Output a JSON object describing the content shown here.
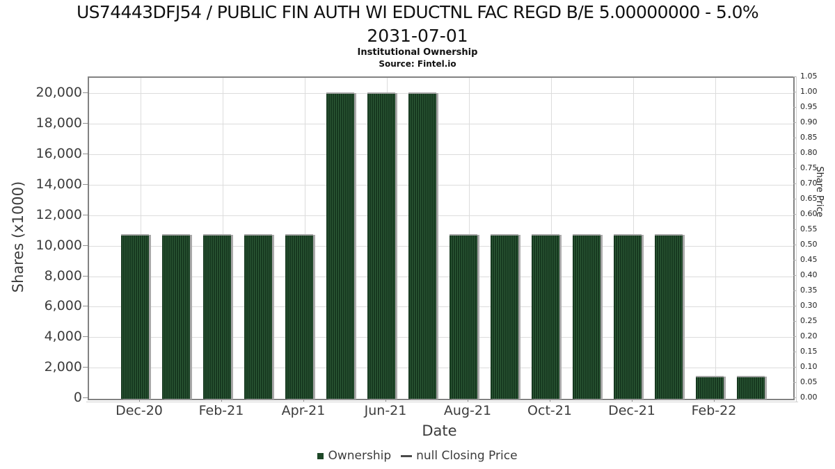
{
  "header": {
    "title_line1": "US74443DFJ54 / PUBLIC FIN AUTH WI EDUCTNL FAC REGD B/E 5.00000000 - 5.0%",
    "title_line2": "2031-07-01",
    "subtitle": "Institutional Ownership",
    "source": "Source: Fintel.io"
  },
  "chart_data": {
    "type": "bar",
    "title": "US74443DFJ54 / PUBLIC FIN AUTH WI EDUCTNL FAC REGD B/E 5.00000000 - 5.0% 2031-07-01",
    "subtitle": "Institutional Ownership",
    "source": "Source: Fintel.io",
    "categories": [
      "Dec-20",
      "Jan-21",
      "Feb-21",
      "Mar-21",
      "Apr-21",
      "May-21",
      "Jun-21",
      "Jul-21",
      "Aug-21",
      "Sep-21",
      "Oct-21",
      "Nov-21",
      "Dec-21",
      "Jan-22",
      "Feb-22",
      "Mar-22"
    ],
    "series": [
      {
        "name": "Ownership",
        "values": [
          10800,
          10800,
          10800,
          10800,
          10800,
          20100,
          20100,
          20100,
          10800,
          10800,
          10800,
          10800,
          10800,
          10800,
          1500,
          1500
        ]
      },
      {
        "name": "null Closing Price",
        "values": []
      }
    ],
    "xlabel": "Date",
    "ylabel_left": "Shares (x1000)",
    "ylabel_right": "Share Price",
    "ylim_left": [
      0,
      20000
    ],
    "ylim_right": [
      0,
      1.05
    ],
    "y_left_tick_labels": [
      "0",
      "2,000",
      "4,000",
      "6,000",
      "8,000",
      "10,000",
      "12,000",
      "14,000",
      "16,000",
      "18,000",
      "20,000"
    ],
    "y_right_tick_labels": [
      "0.00",
      "0.05",
      "0.10",
      "0.15",
      "0.20",
      "0.25",
      "0.30",
      "0.35",
      "0.40",
      "0.45",
      "0.50",
      "0.55",
      "0.60",
      "0.65",
      "0.70",
      "0.75",
      "0.80",
      "0.85",
      "0.90",
      "0.95",
      "1.00",
      "1.05"
    ],
    "x_tick_labels": [
      "Dec-20",
      "Feb-21",
      "Apr-21",
      "Jun-21",
      "Aug-21",
      "Oct-21",
      "Dec-21",
      "Feb-22"
    ],
    "grid": true,
    "legend_position": "bottom",
    "legend": [
      {
        "label": "Ownership",
        "marker": "square",
        "color": "#1d4727"
      },
      {
        "label": "null Closing Price",
        "marker": "line",
        "color": "#4a4a4a"
      }
    ],
    "colors": {
      "bar": "#1d4727",
      "bar_stripe": "#2e5c38",
      "bar_shadow": "#a9a9a9",
      "grid": "#dcdcdc",
      "plot_border": "#828282",
      "tick_text": "#3c3c3c"
    }
  }
}
